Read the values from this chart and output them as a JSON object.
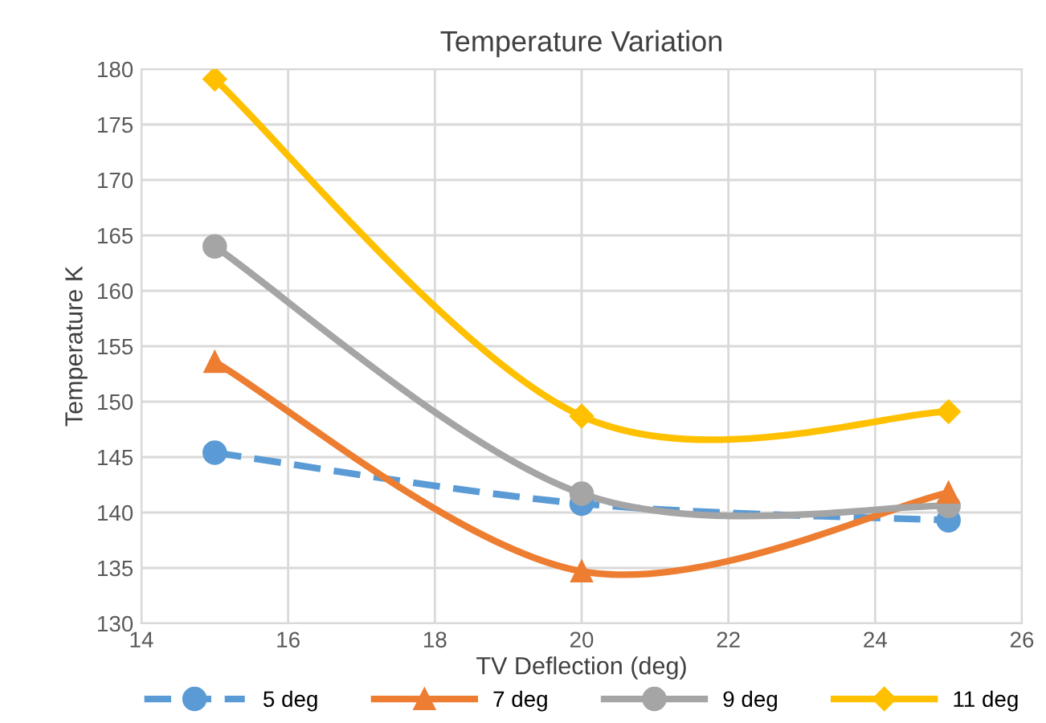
{
  "chart_data": {
    "type": "line",
    "title": "Temperature Variation",
    "xlabel": "TV Deflection (deg)",
    "ylabel": "Temperature K",
    "x": [
      15,
      20,
      25
    ],
    "series": [
      {
        "name": "5 deg",
        "color": "#5b9bd5",
        "values": [
          145.4,
          140.8,
          139.3
        ],
        "marker": "circle",
        "line_style": "dashed"
      },
      {
        "name": "7 deg",
        "color": "#ed7d31",
        "values": [
          153.6,
          134.7,
          141.8
        ],
        "marker": "triangle",
        "line_style": "solid"
      },
      {
        "name": "9 deg",
        "color": "#a5a5a5",
        "values": [
          164.0,
          141.7,
          140.6
        ],
        "marker": "circle",
        "line_style": "solid"
      },
      {
        "name": "11 deg",
        "color": "#ffc000",
        "values": [
          179.1,
          148.7,
          149.1
        ],
        "marker": "diamond",
        "line_style": "solid"
      }
    ],
    "xlim": [
      14,
      26
    ],
    "xticks": [
      14,
      16,
      18,
      20,
      22,
      24,
      26
    ],
    "ylim": [
      130,
      180
    ],
    "yticks": [
      130,
      135,
      140,
      145,
      150,
      155,
      160,
      165,
      170,
      175,
      180
    ],
    "grid": true,
    "legend": "bottom"
  }
}
